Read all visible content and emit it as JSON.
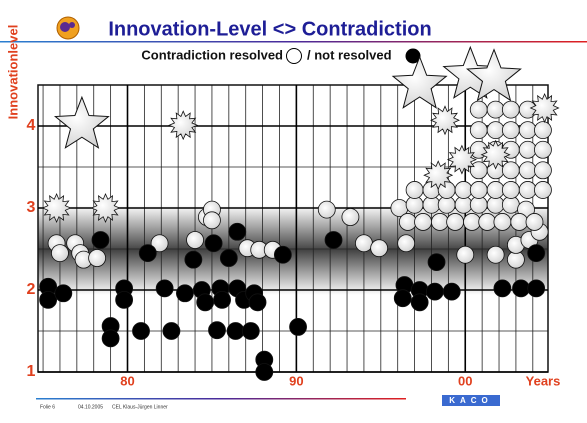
{
  "chart_data": {
    "type": "scatter",
    "title": "Innovation-Level <> Contradiction",
    "ylabel": "Innovationlevel",
    "xlabel": "Years",
    "xlim": [
      1974.7,
      2004.9
    ],
    "ylim": [
      1,
      4.5
    ],
    "xticks": [
      {
        "value": 1980,
        "label": "80"
      },
      {
        "value": 1990,
        "label": "90"
      },
      {
        "value": 2000,
        "label": "00"
      }
    ],
    "yticks": [
      1,
      2,
      3,
      4
    ],
    "grid": true,
    "xgrid_step": 1,
    "ygrid_step": 0.5,
    "series": [
      {
        "name": "Contradiction resolved",
        "color": "#ffffff",
        "marker": "circle",
        "x": [
          1975.8,
          1976.0,
          1976.9,
          1977.2,
          1977.4,
          1978.2,
          1981.9,
          1984.0,
          1984.7,
          1985.0,
          1985.0,
          1987.1,
          1987.8,
          1988.6,
          1991.8,
          1993.2,
          1994.0,
          1994.9,
          1996.5,
          2000.0,
          2001.8,
          2003.0,
          2003.0,
          2003.8,
          2004.4,
          1996.1,
          1997.0,
          1998.0,
          1998.9,
          1999.9,
          2000.8,
          2001.8,
          2002.7,
          2003.6,
          1996.6,
          1997.5,
          1998.5,
          1999.4,
          2000.4,
          2001.3,
          2002.2,
          2003.2,
          2004.1,
          1997.0,
          1998.0,
          1998.9,
          1999.9,
          2000.8,
          2001.8,
          2002.7,
          2003.7,
          2004.6,
          2000.8,
          2001.8,
          2002.7,
          2003.7,
          2004.6,
          2000.8,
          2001.8,
          2002.7,
          2003.7,
          2004.6,
          2000.8,
          2001.8,
          2002.7,
          2003.7,
          2004.6,
          2000.8,
          2001.8,
          2002.7,
          2003.7
        ],
        "y": [
          2.57,
          2.45,
          2.57,
          2.45,
          2.37,
          2.39,
          2.57,
          2.61,
          2.89,
          2.98,
          2.85,
          2.51,
          2.49,
          2.49,
          2.98,
          2.89,
          2.57,
          2.51,
          2.57,
          2.43,
          2.43,
          2.37,
          2.55,
          2.61,
          2.71,
          3.0,
          3.04,
          3.04,
          3.04,
          3.04,
          3.04,
          3.04,
          3.04,
          2.98,
          2.83,
          2.83,
          2.83,
          2.83,
          2.83,
          2.83,
          2.83,
          2.83,
          2.83,
          3.22,
          3.22,
          3.22,
          3.22,
          3.22,
          3.22,
          3.22,
          3.22,
          3.22,
          3.46,
          3.46,
          3.46,
          3.46,
          3.46,
          3.71,
          3.71,
          3.71,
          3.71,
          3.71,
          3.95,
          3.95,
          3.95,
          3.95,
          3.95,
          4.2,
          4.2,
          4.2,
          4.2
        ]
      },
      {
        "name": "/ not resolved",
        "color": "#000000",
        "marker": "circle",
        "x": [
          1975.3,
          1975.3,
          1976.2,
          1978.4,
          1979.0,
          1979.0,
          1979.8,
          1979.8,
          1980.8,
          1981.2,
          1982.2,
          1982.6,
          1983.4,
          1983.9,
          1984.4,
          1984.6,
          1985.1,
          1985.3,
          1985.5,
          1985.6,
          1986.0,
          1986.4,
          1986.5,
          1986.5,
          1986.9,
          1987.3,
          1987.5,
          1987.7,
          1988.1,
          1988.1,
          1989.2,
          1990.1,
          1992.2,
          1996.4,
          1996.3,
          1997.3,
          1997.3,
          1998.3,
          1998.2,
          1999.2,
          2002.2,
          2003.3,
          2004.2,
          2004.2
        ],
        "y": [
          2.04,
          1.88,
          1.96,
          2.61,
          1.56,
          1.41,
          2.02,
          1.88,
          1.5,
          2.45,
          2.02,
          1.5,
          1.96,
          2.37,
          2.0,
          1.85,
          2.57,
          1.51,
          2.02,
          1.88,
          2.39,
          1.5,
          2.71,
          2.02,
          1.88,
          1.5,
          1.96,
          1.85,
          1.15,
          1.0,
          2.43,
          1.55,
          2.61,
          2.06,
          1.9,
          2.0,
          1.85,
          2.34,
          1.98,
          1.98,
          2.02,
          2.02,
          2.02,
          2.45
        ]
      },
      {
        "color": "#ffffff",
        "marker": "burst",
        "x": [
          1975.8,
          1978.7,
          1983.3,
          1998.8,
          1999.8,
          2001.8,
          1998.4,
          2004.7
        ],
        "y": [
          3.0,
          3.0,
          4.01,
          4.07,
          3.59,
          3.65,
          3.4,
          4.22
        ]
      },
      {
        "color": "#ffffff",
        "marker": "star",
        "x": [
          1977.3,
          1997.3,
          2000.3,
          2001.7
        ],
        "y": [
          4.01,
          4.5,
          4.62,
          4.59
        ]
      }
    ]
  },
  "footer": {
    "slide": "Folie 6",
    "date": "04.10.2005",
    "author": "CEL Klaus-Jürgen Linner",
    "logo": "KACO"
  }
}
